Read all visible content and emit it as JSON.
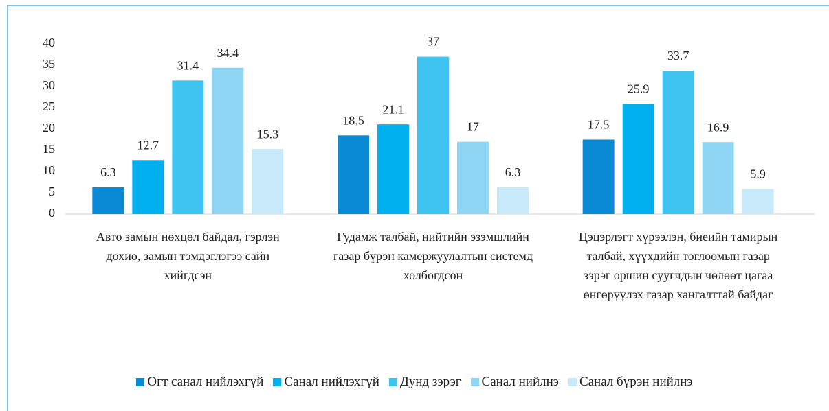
{
  "chart_data": {
    "type": "bar",
    "categories": [
      "Авто замын нөхцөл байдал, гэрлэн дохио, замын тэмдэглэгээ сайн хийгдсэн",
      "Гудамж талбай, нийтийн эзэмшлийн газар бүрэн камержуулалтын системд холбогдсон",
      "Цэцэрлэгт хүрээлэн, биеийн тамирын талбай, хүүхдийн тоглоомын газар зэрэг оршин суугчдын чөлөөт цагаа өнгөрүүлэх газар хангалттай байдаг"
    ],
    "series": [
      {
        "name": "Огт санал нийлэхгүй",
        "color": "#0a8ad4",
        "values": [
          6.3,
          18.5,
          17.5
        ]
      },
      {
        "name": "Санал нийлэхгүй",
        "color": "#00b0ee",
        "values": [
          12.7,
          21.1,
          25.9
        ]
      },
      {
        "name": "Дунд зэрэг",
        "color": "#3ec3f0",
        "values": [
          31.4,
          37,
          33.7
        ]
      },
      {
        "name": "Санал нийлнэ",
        "color": "#8fd6f5",
        "values": [
          34.4,
          17,
          16.9
        ]
      },
      {
        "name": "Санал бүрэн нийлнэ",
        "color": "#c7e9f9",
        "values": [
          15.3,
          6.3,
          5.9
        ]
      }
    ],
    "ylim": [
      0,
      40
    ],
    "yticks": [
      0,
      5,
      10,
      15,
      20,
      25,
      30,
      35,
      40
    ],
    "legend": "bottom"
  }
}
